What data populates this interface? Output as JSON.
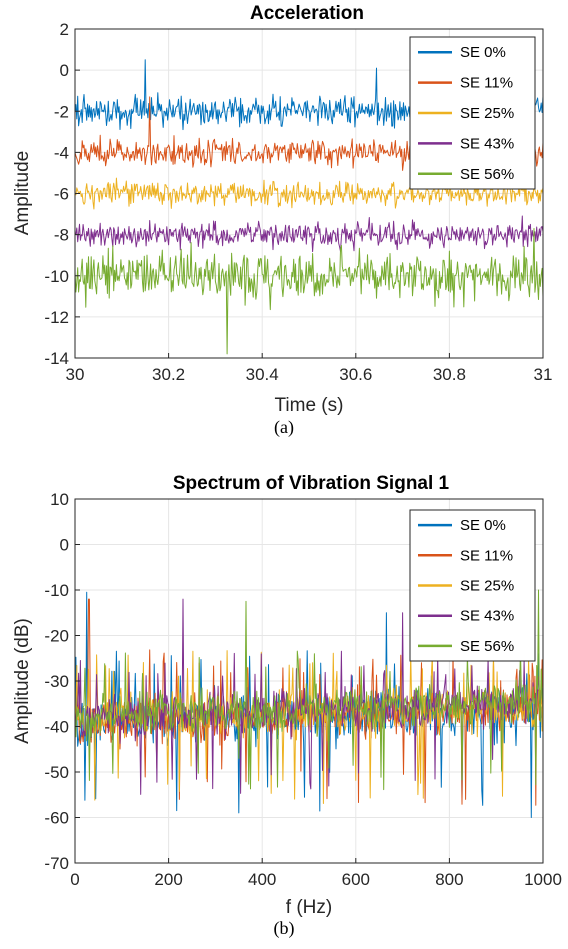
{
  "figure": {
    "panels": [
      {
        "caption": "(a)",
        "title": "Acceleration",
        "xlabel": "Time (s)",
        "ylabel": "Amplitude",
        "legend_location": "top-right"
      },
      {
        "caption": "(b)",
        "title": "Spectrum of Vibration Signal 1",
        "xlabel": "f (Hz)",
        "ylabel": "Amplitude (dB)",
        "legend_location": "top-right"
      }
    ]
  },
  "chart_data": [
    {
      "type": "line",
      "title": "Acceleration",
      "xlabel": "Time (s)",
      "ylabel": "Amplitude",
      "xlim": [
        30,
        31
      ],
      "ylim": [
        -14,
        2
      ],
      "xticks": [
        30,
        30.2,
        30.4,
        30.6,
        30.8,
        31
      ],
      "xtick_labels": [
        "30",
        "30.2",
        "30.4",
        "30.6",
        "30.8",
        "31"
      ],
      "yticks": [
        2,
        0,
        -2,
        -4,
        -6,
        -8,
        -10,
        -12,
        -14
      ],
      "ytick_labels": [
        "2",
        "0",
        "-2",
        "-4",
        "-6",
        "-8",
        "-10",
        "-12",
        "-14"
      ],
      "grid": true,
      "legend": "top-right",
      "series": [
        {
          "name": "SE 0%",
          "color": "#0072BD",
          "center": -2,
          "low": -3.2,
          "high": -0.6,
          "spikes": [
            {
              "x": 30.15,
              "y": 0.5
            },
            {
              "x": 30.645,
              "y": 0.1
            }
          ]
        },
        {
          "name": "SE 11%",
          "color": "#D95319",
          "center": -4,
          "low": -5.2,
          "high": -2.9,
          "spikes": [
            {
              "x": 30.16,
              "y": -1.3
            }
          ]
        },
        {
          "name": "SE 25%",
          "color": "#EDB120",
          "center": -6,
          "low": -7.0,
          "high": -4.9,
          "spikes": []
        },
        {
          "name": "SE 43%",
          "color": "#7E2F8E",
          "center": -8,
          "low": -9.1,
          "high": -6.9,
          "spikes": []
        },
        {
          "name": "SE 56%",
          "color": "#77AC30",
          "center": -10,
          "low": -11.9,
          "high": -7.7,
          "spikes": [
            {
              "x": 30.325,
              "y": -13.8
            },
            {
              "x": 30.98,
              "y": -7.7
            }
          ]
        }
      ]
    },
    {
      "type": "line",
      "title": "Spectrum of Vibration Signal 1",
      "xlabel": "f (Hz)",
      "ylabel": "Amplitude (dB)",
      "xlim": [
        0,
        1000
      ],
      "ylim": [
        -70,
        10
      ],
      "xticks": [
        0,
        200,
        400,
        600,
        800,
        1000
      ],
      "xtick_labels": [
        "0",
        "200",
        "400",
        "600",
        "800",
        "1000"
      ],
      "yticks": [
        10,
        0,
        -10,
        -20,
        -30,
        -40,
        -50,
        -60,
        -70
      ],
      "ytick_labels": [
        "10",
        "0",
        "-10",
        "-20",
        "-30",
        "-40",
        "-50",
        "-60",
        "-70"
      ],
      "grid": true,
      "legend": "top-right",
      "series": [
        {
          "name": "SE 0%",
          "color": "#0072BD",
          "floor": -50,
          "top": -29,
          "min": -61,
          "peaks": [
            {
              "x": 25,
              "y": -10.5
            },
            {
              "x": 665,
              "y": -15
            },
            {
              "x": 975,
              "y": -60
            }
          ]
        },
        {
          "name": "SE 11%",
          "color": "#D95319",
          "floor": -49,
          "top": -29,
          "min": -59,
          "peaks": [
            {
              "x": 30,
              "y": -12
            }
          ]
        },
        {
          "name": "SE 25%",
          "color": "#EDB120",
          "floor": -48,
          "top": -29,
          "min": -58,
          "peaks": []
        },
        {
          "name": "SE 43%",
          "color": "#7E2F8E",
          "floor": -47,
          "top": -29,
          "min": -55,
          "peaks": [
            {
              "x": 230,
              "y": -12
            },
            {
              "x": 700,
              "y": -15
            }
          ]
        },
        {
          "name": "SE 56%",
          "color": "#77AC30",
          "floor": -46,
          "top": -29,
          "min": -54,
          "peaks": [
            {
              "x": 365,
              "y": -12.5
            },
            {
              "x": 990,
              "y": -10
            }
          ]
        }
      ]
    }
  ]
}
